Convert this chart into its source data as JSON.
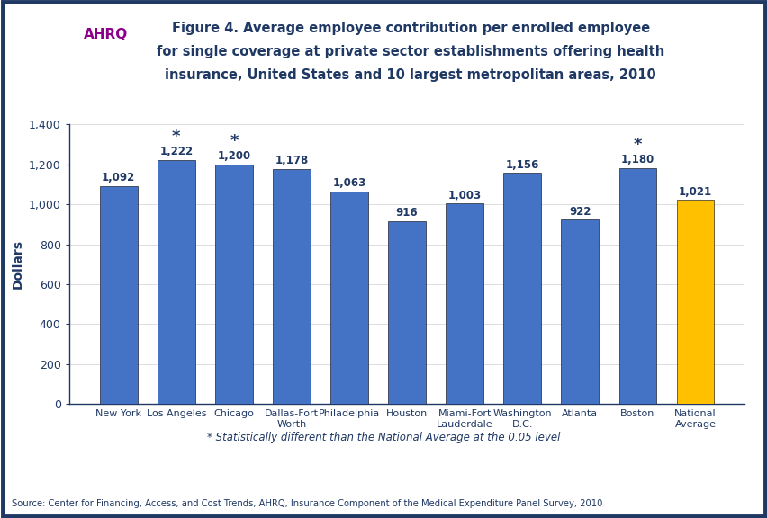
{
  "categories": [
    "New York",
    "Los Angeles",
    "Chicago",
    "Dallas-Fort\nWorth",
    "Philadelphia",
    "Houston",
    "Miami-Fort\nLauderdale",
    "Washington\nD.C.",
    "Atlanta",
    "Boston",
    "National\nAverage"
  ],
  "values": [
    1092,
    1222,
    1200,
    1178,
    1063,
    916,
    1003,
    1156,
    922,
    1180,
    1021
  ],
  "bar_colors": [
    "#4472C4",
    "#4472C4",
    "#4472C4",
    "#4472C4",
    "#4472C4",
    "#4472C4",
    "#4472C4",
    "#4472C4",
    "#4472C4",
    "#4472C4",
    "#FFC000"
  ],
  "stat_sig": [
    false,
    true,
    true,
    false,
    false,
    false,
    false,
    false,
    false,
    true,
    false
  ],
  "title_line1": "Figure 4. Average employee contribution per enrolled employee",
  "title_line2": "for single coverage at private sector establishments offering health",
  "title_line3": "insurance, United States and 10 largest metropolitan areas, 2010",
  "ylabel": "Dollars",
  "ylim": [
    0,
    1400
  ],
  "yticks": [
    0,
    200,
    400,
    600,
    800,
    1000,
    1200,
    1400
  ],
  "footnote": "* Statistically different than the National Average at the 0.05 level",
  "source": "Source: Center for Financing, Access, and Cost Trends, AHRQ, Insurance Component of the Medical Expenditure Panel Survey, 2010",
  "title_color": "#1F3864",
  "bar_label_color": "#1F3864",
  "axis_color": "#1F3864",
  "footnote_color": "#1F3864",
  "source_color": "#1F3864",
  "star_color": "#1F3864",
  "border_color": "#1F3864",
  "teal_color": "#00AEAE",
  "divider_color": "#1F3864"
}
